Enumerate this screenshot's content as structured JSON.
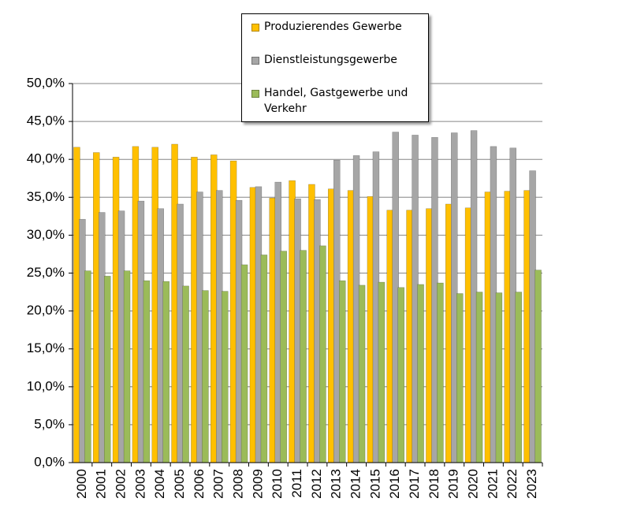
{
  "chart_data": {
    "type": "bar",
    "categories": [
      "2000",
      "2001",
      "2002",
      "2003",
      "2004",
      "2005",
      "2006",
      "2007",
      "2008",
      "2009",
      "2010",
      "2011",
      "2012",
      "2013",
      "2014",
      "2015",
      "2016",
      "2017",
      "2018",
      "2019",
      "2020",
      "2021",
      "2022",
      "2023"
    ],
    "series": [
      {
        "name": "Produzierendes Gewerbe",
        "color": "#ffc000",
        "values": [
          41.6,
          40.9,
          40.3,
          41.7,
          41.6,
          42.0,
          40.3,
          40.6,
          39.8,
          36.3,
          34.9,
          37.2,
          36.7,
          36.1,
          35.9,
          35.1,
          33.3,
          33.3,
          33.5,
          34.1,
          33.6,
          35.7,
          35.8,
          35.9
        ]
      },
      {
        "name": "Dienstleistungsgewerbe",
        "color": "#a6a6a6",
        "values": [
          32.1,
          33.0,
          33.2,
          34.5,
          33.5,
          34.1,
          35.7,
          35.9,
          34.6,
          36.4,
          37.0,
          34.8,
          34.7,
          39.9,
          40.5,
          41.0,
          43.6,
          43.2,
          42.9,
          43.5,
          43.8,
          41.7,
          41.5,
          38.5
        ]
      },
      {
        "name": "Handel, Gastgewerbe und Verkehr",
        "color": "#9bbb59",
        "values": [
          25.3,
          24.6,
          25.3,
          24.0,
          23.9,
          23.3,
          22.7,
          22.6,
          26.1,
          27.4,
          27.9,
          28.0,
          28.6,
          24.0,
          23.4,
          23.8,
          23.1,
          23.5,
          23.7,
          22.3,
          22.5,
          22.4,
          22.5,
          25.4
        ]
      }
    ],
    "ylim": [
      0,
      50
    ],
    "yticks": [
      {
        "value": 0,
        "label": "0,0%"
      },
      {
        "value": 5,
        "label": "5,0%"
      },
      {
        "value": 10,
        "label": "10,0%"
      },
      {
        "value": 15,
        "label": "15,0%"
      },
      {
        "value": 20,
        "label": "20,0%"
      },
      {
        "value": 25,
        "label": "25,0%"
      },
      {
        "value": 30,
        "label": "30,0%"
      },
      {
        "value": 35,
        "label": "35,0%"
      },
      {
        "value": 40,
        "label": "40,0%"
      },
      {
        "value": 45,
        "label": "45,0%"
      },
      {
        "value": 50,
        "label": "50,0%"
      }
    ],
    "grid": true,
    "legend": "top"
  }
}
